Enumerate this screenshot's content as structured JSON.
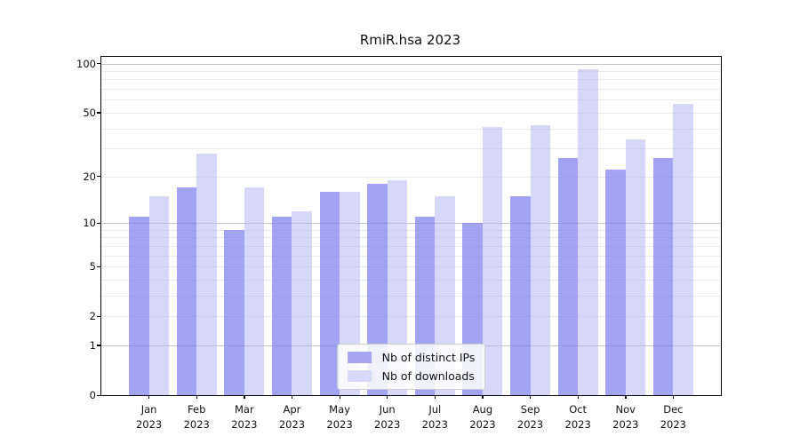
{
  "title": "RmiR.hsa 2023",
  "chart_data": {
    "type": "bar",
    "title": "RmiR.hsa 2023",
    "subtitle": "",
    "categories": [
      "Jan 2023",
      "Feb 2023",
      "Mar 2023",
      "Apr 2023",
      "May 2023",
      "Jun 2023",
      "Jul 2023",
      "Aug 2023",
      "Sep 2023",
      "Oct 2023",
      "Nov 2023",
      "Dec 2023"
    ],
    "series": [
      {
        "name": "Nb of distinct IPs",
        "color": "#a5a5f3",
        "fill": "rgba(128,128,240,0.72)",
        "values": [
          11,
          17,
          9,
          11,
          16,
          18,
          11,
          10,
          15,
          26,
          22,
          26
        ]
      },
      {
        "name": "Nb of downloads",
        "color": "#d8d8f9",
        "fill": "rgba(178,178,245,0.52)",
        "values": [
          15,
          28,
          17,
          12,
          16,
          19,
          15,
          41,
          42,
          92,
          34,
          57
        ]
      }
    ],
    "xlabel": "",
    "ylabel": "",
    "y_scale": "log1p",
    "ylim": [
      0,
      110
    ],
    "y_ticks": [
      0,
      1,
      2,
      5,
      10,
      20,
      50,
      100
    ],
    "y_major_gridlines": [
      1,
      10,
      100
    ],
    "y_minor_gridlines": [
      2,
      3,
      4,
      5,
      6,
      7,
      8,
      9,
      20,
      30,
      40,
      50,
      60,
      70,
      80,
      90
    ],
    "grid": true,
    "legend_position": "bottom-center"
  },
  "colors": {
    "background": "#ffffff",
    "axis_frame": "#000000",
    "major_gridline": "#c3c3c3",
    "minor_gridline": "#ebebeb",
    "text": "#111111",
    "legend_border": "#cccccc"
  }
}
